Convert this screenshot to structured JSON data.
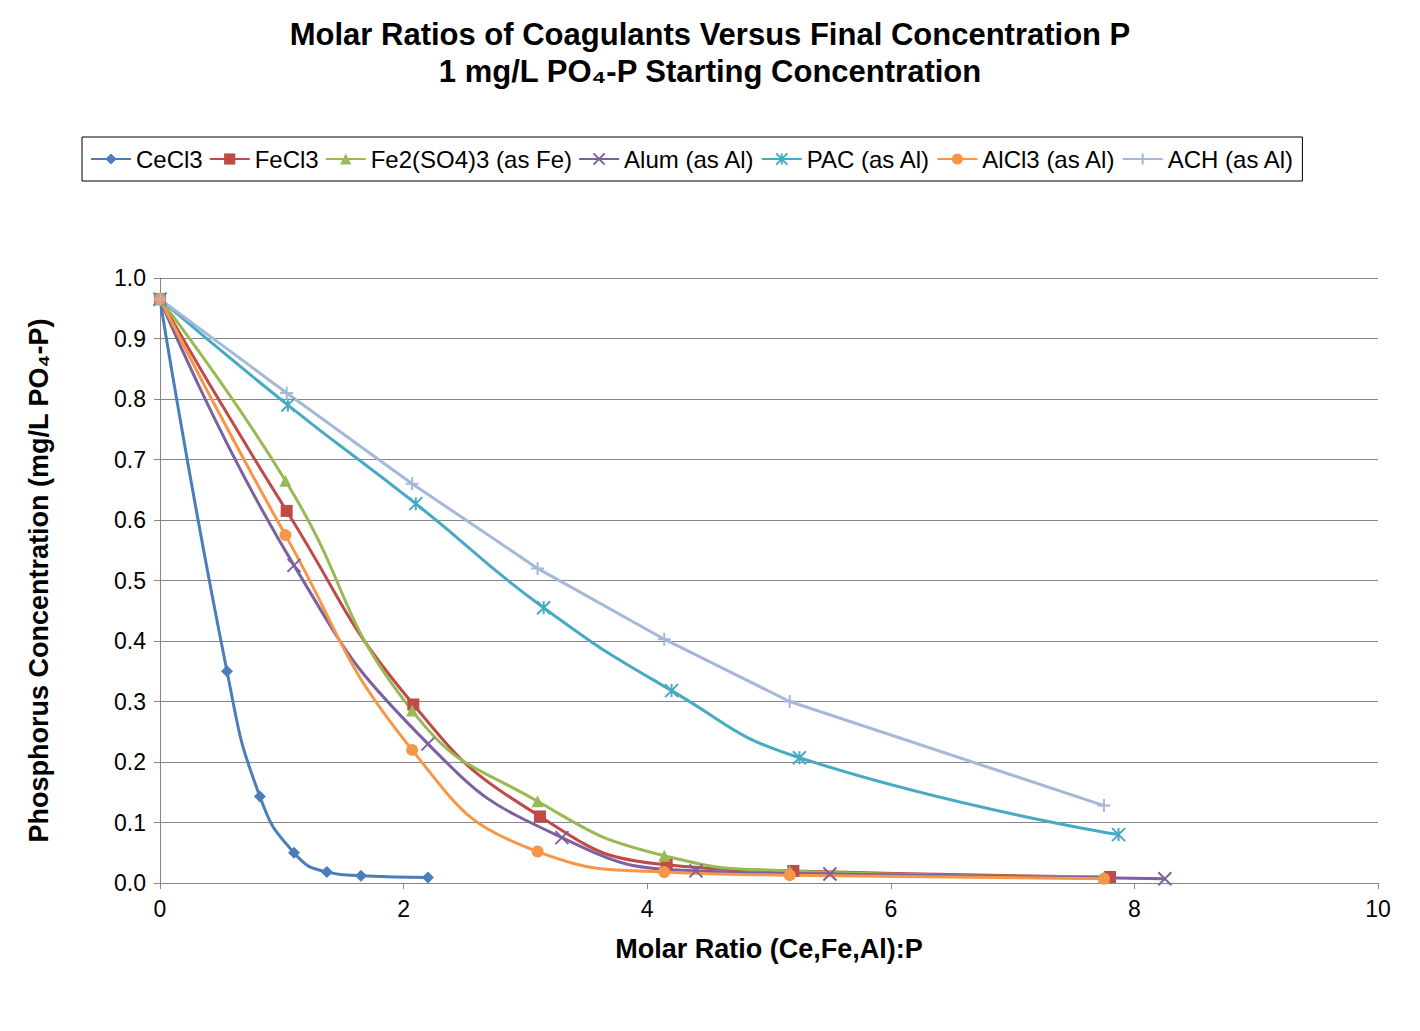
{
  "chart_data": {
    "type": "line",
    "title": "Molar Ratios of Coagulants Versus Final Concentration P",
    "subtitle": "1 mg/L PO₄-P Starting Concentration",
    "x_label": "Molar Ratio (Ce,Fe,Al):P",
    "y_label": "Phosphorus Concentration (mg/L PO₄-P)",
    "xlim": [
      0,
      10
    ],
    "xticks": [
      0,
      2,
      4,
      6,
      8,
      10
    ],
    "ylim": [
      0,
      1
    ],
    "yticks": [
      {
        "value": 0,
        "label": "0.0"
      },
      {
        "value": 0.1,
        "label": "0.1"
      },
      {
        "value": 0.2,
        "label": "0.2"
      },
      {
        "value": 0.3,
        "label": "0.3"
      },
      {
        "value": 0.4,
        "label": "0.4"
      },
      {
        "value": 0.5,
        "label": "0.5"
      },
      {
        "value": 0.6,
        "label": "0.6"
      },
      {
        "value": 0.7,
        "label": "0.7"
      },
      {
        "value": 0.8,
        "label": "0.8"
      },
      {
        "value": 0.9,
        "label": "0.9"
      },
      {
        "value": 1,
        "label": "1.0"
      }
    ],
    "grid": true,
    "legend": "top",
    "series": [
      {
        "name": "CeCl3",
        "color": "#4a7ebb",
        "marker": "diamond",
        "line_style": "smooth",
        "x": [
          0,
          0.55,
          0.82,
          1.1,
          1.37,
          1.65,
          2.2
        ],
        "values": [
          0.965,
          0.35,
          0.143,
          0.05,
          0.018,
          0.012,
          0.009
        ]
      },
      {
        "name": "FeCl3",
        "color": "#be4b48",
        "marker": "square",
        "line_style": "smooth",
        "x": [
          0,
          1.04,
          2.08,
          3.12,
          4.16,
          5.2,
          7.8
        ],
        "values": [
          0.965,
          0.615,
          0.295,
          0.11,
          0.03,
          0.02,
          0.01
        ]
      },
      {
        "name": "Fe2(SO4)3 (as Fe)",
        "color": "#98b954",
        "marker": "triangle",
        "line_style": "smooth",
        "x": [
          0,
          1.03,
          2.07,
          3.1,
          4.14,
          5.17,
          7.75
        ],
        "values": [
          0.965,
          0.665,
          0.285,
          0.135,
          0.045,
          0.02,
          0.01
        ]
      },
      {
        "name": "Alum (as Al)",
        "color": "#7d60a0",
        "marker": "x",
        "line_style": "smooth",
        "x": [
          0,
          1.1,
          2.2,
          3.3,
          4.4,
          5.5,
          8.25
        ],
        "values": [
          0.965,
          0.525,
          0.23,
          0.075,
          0.02,
          0.015,
          0.007
        ]
      },
      {
        "name": "PAC (as Al)",
        "color": "#46aac5",
        "marker": "asterisk",
        "line_style": "smooth",
        "x": [
          0,
          1.05,
          2.1,
          3.15,
          4.2,
          5.25,
          7.87
        ],
        "values": [
          0.965,
          0.79,
          0.627,
          0.455,
          0.318,
          0.207,
          0.08
        ]
      },
      {
        "name": "AlCl3 (as Al)",
        "color": "#f79646",
        "marker": "circle",
        "line_style": "smooth",
        "x": [
          0,
          1.03,
          2.07,
          3.1,
          4.14,
          5.17,
          7.75
        ],
        "values": [
          0.965,
          0.575,
          0.22,
          0.052,
          0.018,
          0.013,
          0.007
        ]
      },
      {
        "name": "ACH (as Al)",
        "color": "#a5b8da",
        "marker": "plus",
        "line_style": "solid",
        "x": [
          0,
          1.04,
          2.07,
          3.1,
          4.14,
          5.17,
          7.75
        ],
        "values": [
          0.965,
          0.81,
          0.66,
          0.52,
          0.403,
          0.3,
          0.128
        ]
      }
    ]
  }
}
